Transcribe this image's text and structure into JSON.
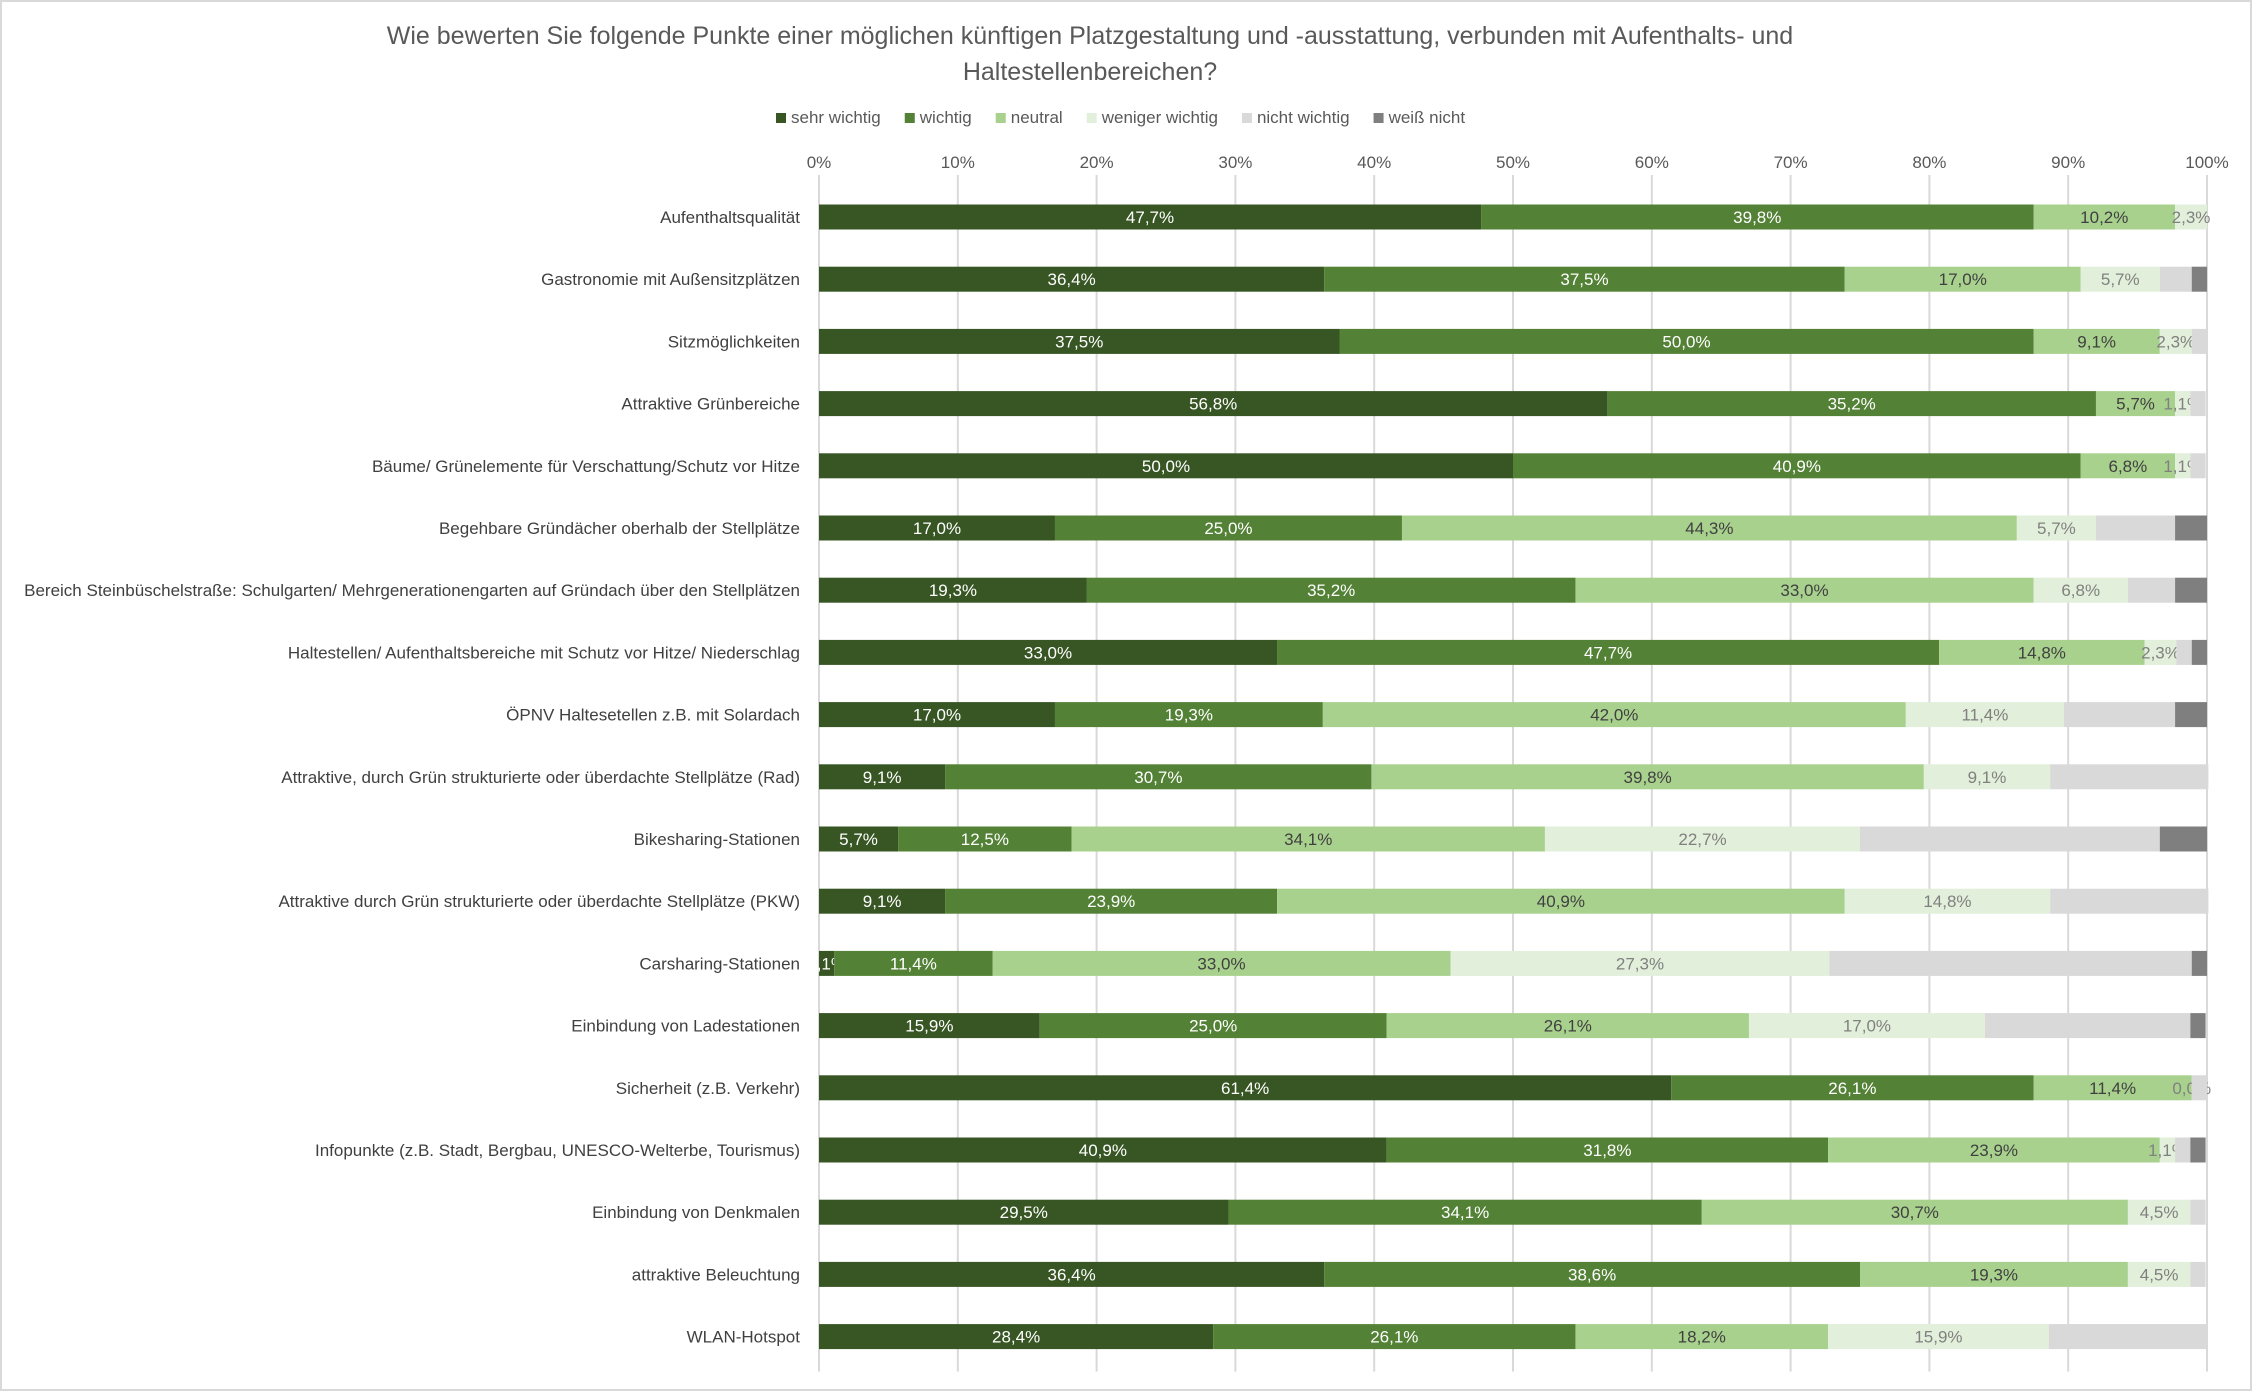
{
  "chart_data": {
    "type": "bar",
    "orientation": "horizontal",
    "stacked": "percent",
    "title": "Wie bewerten Sie folgende Punkte einer möglichen künftigen Platzgestaltung und -ausstattung, verbunden mit Aufenthalts- und Haltestellenbereichen?",
    "xlim": [
      0,
      100
    ],
    "x_ticks": [
      "0%",
      "10%",
      "20%",
      "30%",
      "40%",
      "50%",
      "60%",
      "70%",
      "80%",
      "90%",
      "100%"
    ],
    "grid": true,
    "legend_position": "top",
    "categories": [
      "Aufenthaltsqualität",
      "Gastronomie mit Außensitzplätzen",
      "Sitzmöglichkeiten",
      "Attraktive Grünbereiche",
      "Bäume/ Grünelemente für Verschattung/Schutz vor Hitze",
      "Begehbare Gründächer oberhalb der Stellplätze",
      "Bereich Steinbüschelstraße: Schulgarten/ Mehrgenerationengarten auf Gründach über den Stellplätzen",
      "Haltestellen/ Aufenthaltsbereiche mit Schutz vor Hitze/ Niederschlag",
      "ÖPNV Haltesetellen z.B. mit Solardach",
      "Attraktive, durch Grün strukturierte oder überdachte Stellplätze (Rad)",
      "Bikesharing-Stationen",
      "Attraktive durch Grün strukturierte oder überdachte Stellplätze (PKW)",
      "Carsharing-Stationen",
      "Einbindung von Ladestationen",
      "Sicherheit (z.B. Verkehr)",
      "Infopunkte (z.B. Stadt, Bergbau, UNESCO-Welterbe, Tourismus)",
      "Einbindung von Denkmalen",
      "attraktive Beleuchtung",
      "WLAN-Hotspot"
    ],
    "series": [
      {
        "name": "sehr wichtig",
        "color": "#375623",
        "labels": true,
        "values": [
          47.7,
          36.4,
          37.5,
          56.8,
          50.0,
          17.0,
          19.3,
          33.0,
          17.0,
          9.1,
          5.7,
          9.1,
          1.1,
          15.9,
          61.4,
          40.9,
          29.5,
          36.4,
          28.4
        ]
      },
      {
        "name": "wichtig",
        "color": "#538135",
        "labels": true,
        "values": [
          39.8,
          37.5,
          50.0,
          35.2,
          40.9,
          25.0,
          35.2,
          47.7,
          19.3,
          30.7,
          12.5,
          23.9,
          11.4,
          25.0,
          26.1,
          31.8,
          34.1,
          38.6,
          26.1
        ]
      },
      {
        "name": "neutral",
        "color": "#a9d18e",
        "labels": true,
        "values": [
          10.2,
          17.0,
          9.1,
          5.7,
          6.8,
          44.3,
          33.0,
          14.8,
          42.0,
          39.8,
          34.1,
          40.9,
          33.0,
          26.1,
          11.4,
          23.9,
          30.7,
          19.3,
          18.2
        ]
      },
      {
        "name": "weniger wichtig",
        "color": "#e2efda",
        "labels": true,
        "values": [
          2.3,
          5.7,
          2.3,
          1.1,
          1.1,
          5.7,
          6.8,
          2.3,
          11.4,
          9.1,
          22.7,
          14.8,
          27.3,
          17.0,
          0.0,
          1.1,
          4.5,
          4.5,
          15.9
        ]
      },
      {
        "name": "nicht wichtig",
        "color": "#d9d9d9",
        "labels": false,
        "values": [
          0,
          2.3,
          1.1,
          1.1,
          1.1,
          5.7,
          3.4,
          1.1,
          8.0,
          11.4,
          21.6,
          11.4,
          26.1,
          14.8,
          1.1,
          1.1,
          1.1,
          1.1,
          11.4
        ]
      },
      {
        "name": "weiß nicht",
        "color": "#7f7f7f",
        "labels": false,
        "values": [
          0,
          1.1,
          0,
          0,
          0,
          2.3,
          2.3,
          1.1,
          2.3,
          0,
          3.4,
          0,
          1.1,
          1.1,
          0,
          1.1,
          0,
          0,
          0
        ]
      }
    ]
  }
}
